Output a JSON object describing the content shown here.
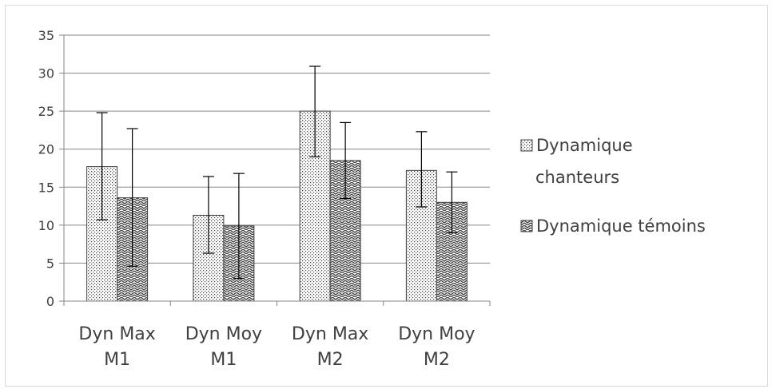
{
  "chart_data": {
    "type": "bar",
    "categories": [
      [
        "Dyn Max",
        "M1"
      ],
      [
        "Dyn Moy",
        "M1"
      ],
      [
        "Dyn Max",
        "M2"
      ],
      [
        "Dyn Moy",
        "M2"
      ]
    ],
    "series": [
      {
        "name": [
          "Dynamique",
          "chanteurs"
        ],
        "values": [
          17.7,
          11.3,
          25.0,
          17.2
        ],
        "error_low": [
          10.7,
          6.3,
          19.0,
          12.4
        ],
        "error_high": [
          24.8,
          16.4,
          30.9,
          22.3
        ],
        "pattern": "dots"
      },
      {
        "name": [
          "Dynamique témoins"
        ],
        "values": [
          13.6,
          9.9,
          18.5,
          13.0
        ],
        "error_low": [
          4.6,
          3.0,
          13.5,
          9.0
        ],
        "error_high": [
          22.7,
          16.8,
          23.5,
          17.0
        ],
        "pattern": "zigzag"
      }
    ],
    "ylim": [
      0,
      35
    ],
    "yticks": [
      0,
      5,
      10,
      15,
      20,
      25,
      30,
      35
    ],
    "grid": true,
    "legend_position": "right",
    "colors": {
      "bar_fill": "#ffffff",
      "pattern": "#404040",
      "axis": "#868686",
      "grid": "#868686",
      "text": "#404040",
      "error_bar": "#000000"
    }
  }
}
